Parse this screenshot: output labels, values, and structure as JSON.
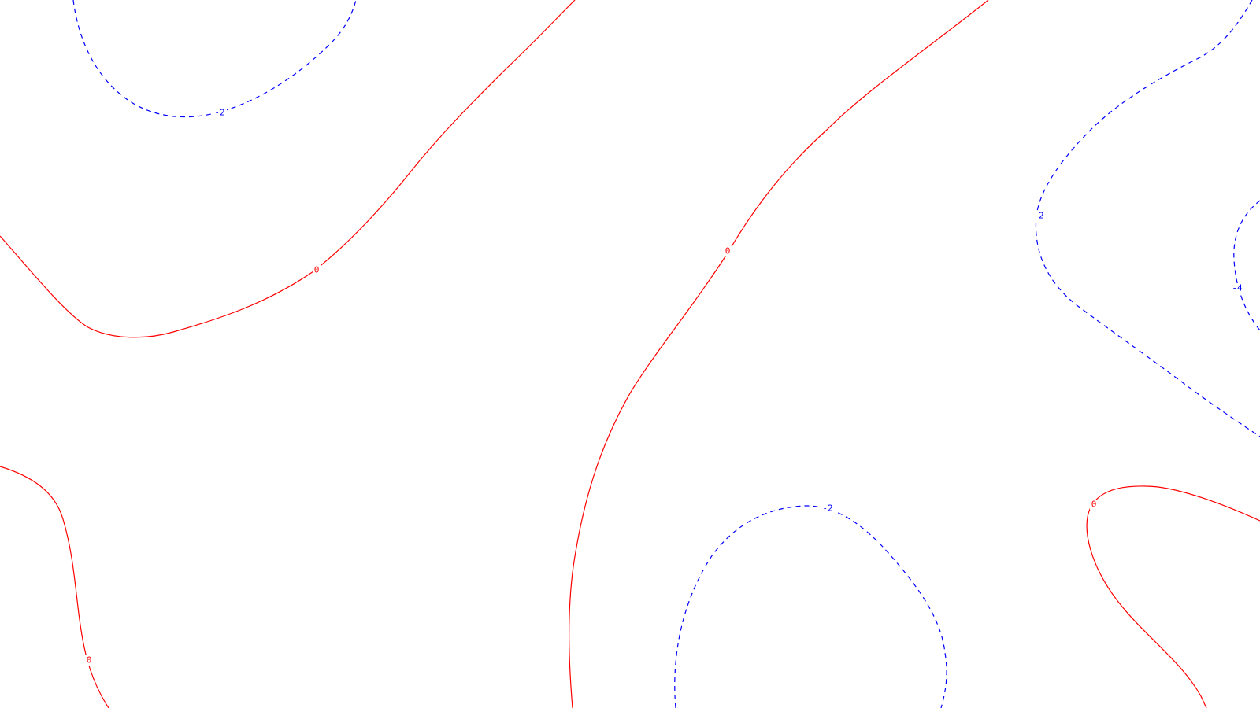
{
  "map": {
    "background": "#ffffff",
    "zero_contour_color": "#ff0000",
    "negative_contour_color": "#0000ff",
    "contours": [
      {
        "id": "zero-northwest",
        "level": 0,
        "style": "solid",
        "label": "0"
      },
      {
        "id": "zero-central",
        "level": 0,
        "style": "solid",
        "label": "0"
      },
      {
        "id": "zero-southwest",
        "level": 0,
        "style": "solid",
        "label": "0"
      },
      {
        "id": "zero-southeast",
        "level": 0,
        "style": "solid",
        "label": "0"
      },
      {
        "id": "minus2-northwest",
        "level": -2,
        "style": "dashed",
        "label": "-2"
      },
      {
        "id": "minus2-south",
        "level": -2,
        "style": "dashed",
        "label": "-2"
      },
      {
        "id": "minus2-east",
        "level": -2,
        "style": "dashed",
        "label": "-2"
      },
      {
        "id": "minus4-east",
        "level": -4,
        "style": "dashed",
        "label": "-4"
      }
    ]
  }
}
